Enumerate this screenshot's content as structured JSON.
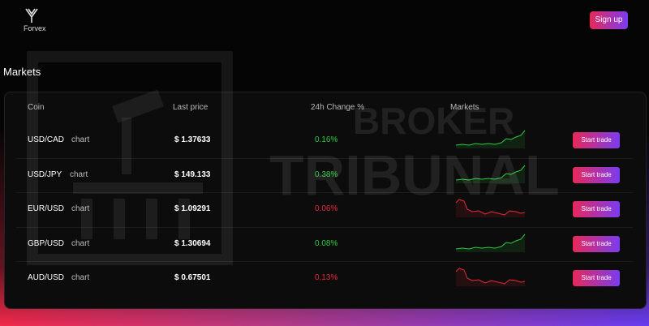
{
  "header": {
    "logo": "Forvex",
    "signup": "Sign up"
  },
  "watermark": [
    "BROKER",
    "TRIBUNAL"
  ],
  "markets": {
    "title": "Markets",
    "columns": [
      "Coin",
      "Last price",
      "24h Change %",
      "Markets"
    ],
    "rows": [
      {
        "coin": "USD/CAD",
        "link": "chart",
        "price": "$ 1.37633",
        "change": "0.16%",
        "color": "#2ecc40",
        "action": "Start trade"
      },
      {
        "coin": "USD/JPY",
        "link": "chart",
        "price": "$ 149.133",
        "change": "0.38%",
        "color": "#2ecc40",
        "action": "Start trade"
      },
      {
        "coin": "EUR/USD",
        "link": "chart",
        "price": "$ 1.09291",
        "change": "0.06%",
        "color": "#e8283c",
        "action": "Start trade"
      },
      {
        "coin": "GBP/USD",
        "link": "chart",
        "price": "$ 1.30694",
        "change": "0.08%",
        "color": "#2ecc40",
        "action": "Start trade"
      },
      {
        "coin": "AUD/USD",
        "link": "chart",
        "price": "$ 0.67501",
        "change": "0.13%",
        "color": "#e8283c",
        "action": "Start trade"
      }
    ]
  }
}
